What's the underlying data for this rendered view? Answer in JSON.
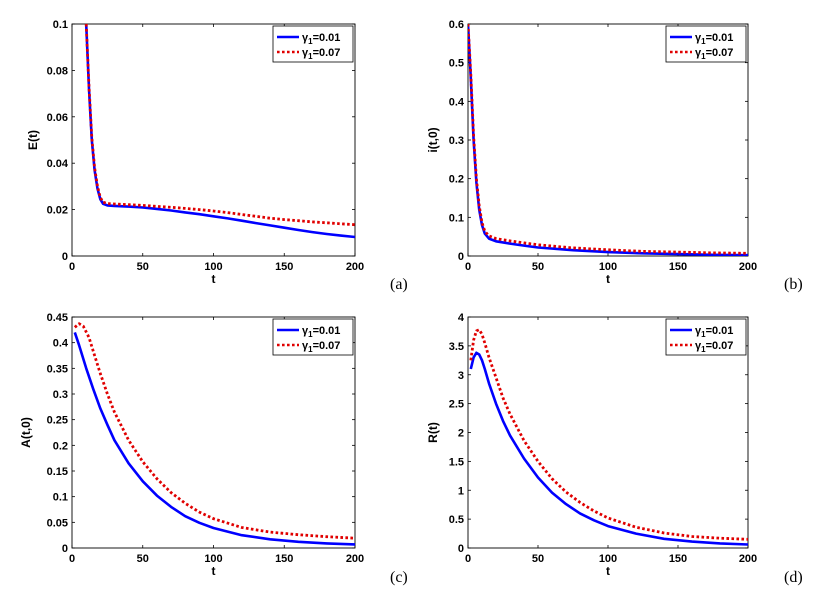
{
  "chart_data": [
    {
      "type": "line",
      "panel_tag": "(a)",
      "xlabel": "t",
      "ylabel": "E(t)",
      "xlim": [
        0,
        200
      ],
      "ylim": [
        0,
        0.1
      ],
      "xticks": [
        "0",
        "50",
        "100",
        "150",
        "200"
      ],
      "yticks": [
        "0",
        "0.02",
        "0.04",
        "0.06",
        "0.08",
        "0.1"
      ],
      "legend": {
        "position": "top-right"
      },
      "series": [
        {
          "name": "γ1=0.01",
          "legend_base": "γ",
          "legend_sub": "1",
          "legend_rest": "=0.01",
          "color": "#0000ff",
          "style": "solid",
          "x": [
            10,
            12,
            14,
            16,
            18,
            20,
            22,
            25,
            30,
            40,
            50,
            60,
            70,
            80,
            90,
            100,
            110,
            120,
            130,
            140,
            150,
            160,
            170,
            180,
            190,
            200
          ],
          "y": [
            0.1,
            0.072,
            0.05,
            0.037,
            0.029,
            0.0245,
            0.0225,
            0.0218,
            0.0216,
            0.0213,
            0.0209,
            0.0203,
            0.0196,
            0.0188,
            0.018,
            0.0171,
            0.0162,
            0.0152,
            0.0142,
            0.0132,
            0.0122,
            0.0112,
            0.0103,
            0.0095,
            0.0088,
            0.0082
          ]
        },
        {
          "name": "γ1=0.07",
          "legend_base": "γ",
          "legend_sub": "1",
          "legend_rest": "=0.07",
          "color": "#e00000",
          "style": "dotted",
          "x": [
            10,
            12,
            14,
            16,
            18,
            20,
            22,
            25,
            30,
            40,
            50,
            60,
            70,
            80,
            90,
            100,
            110,
            120,
            130,
            140,
            150,
            160,
            170,
            180,
            190,
            200
          ],
          "y": [
            0.1,
            0.073,
            0.051,
            0.038,
            0.03,
            0.0252,
            0.0232,
            0.0226,
            0.0224,
            0.0221,
            0.0218,
            0.0214,
            0.021,
            0.0205,
            0.02,
            0.0194,
            0.0187,
            0.0179,
            0.0171,
            0.0163,
            0.0157,
            0.0152,
            0.0147,
            0.0143,
            0.0139,
            0.0135
          ]
        }
      ]
    },
    {
      "type": "line",
      "panel_tag": "(b)",
      "xlabel": "t",
      "ylabel": "i(t,0)",
      "xlim": [
        0,
        200
      ],
      "ylim": [
        0,
        0.6
      ],
      "xticks": [
        "0",
        "50",
        "100",
        "150",
        "200"
      ],
      "yticks": [
        "0",
        "0.1",
        "0.2",
        "0.3",
        "0.4",
        "0.5",
        "0.6"
      ],
      "legend": {
        "position": "top-right"
      },
      "series": [
        {
          "name": "γ1=0.01",
          "legend_base": "γ",
          "legend_sub": "1",
          "legend_rest": "=0.01",
          "color": "#0000ff",
          "style": "solid",
          "x": [
            0,
            2,
            4,
            6,
            8,
            10,
            12,
            15,
            20,
            30,
            40,
            50,
            75,
            100,
            125,
            150,
            175,
            200
          ],
          "y": [
            0.6,
            0.46,
            0.3,
            0.19,
            0.12,
            0.08,
            0.058,
            0.045,
            0.038,
            0.032,
            0.027,
            0.022,
            0.015,
            0.01,
            0.007,
            0.005,
            0.003,
            0.002
          ]
        },
        {
          "name": "γ1=0.07",
          "legend_base": "γ",
          "legend_sub": "1",
          "legend_rest": "=0.07",
          "color": "#e00000",
          "style": "dotted",
          "x": [
            0,
            2,
            4,
            6,
            8,
            10,
            12,
            15,
            20,
            30,
            40,
            50,
            75,
            100,
            125,
            150,
            175,
            200
          ],
          "y": [
            0.6,
            0.47,
            0.31,
            0.2,
            0.13,
            0.086,
            0.064,
            0.052,
            0.045,
            0.039,
            0.034,
            0.029,
            0.021,
            0.016,
            0.012,
            0.01,
            0.008,
            0.007
          ]
        }
      ]
    },
    {
      "type": "line",
      "panel_tag": "(c)",
      "xlabel": "t",
      "ylabel": "A(t,0)",
      "xlim": [
        0,
        200
      ],
      "ylim": [
        0,
        0.45
      ],
      "xticks": [
        "0",
        "50",
        "100",
        "150",
        "200"
      ],
      "yticks": [
        "0",
        "0.05",
        "0.1",
        "0.15",
        "0.2",
        "0.25",
        "0.3",
        "0.35",
        "0.4",
        "0.45"
      ],
      "legend": {
        "position": "top-right"
      },
      "series": [
        {
          "name": "γ1=0.01",
          "legend_base": "γ",
          "legend_sub": "1",
          "legend_rest": "=0.01",
          "color": "#0000ff",
          "style": "solid",
          "x": [
            2,
            5,
            10,
            15,
            20,
            25,
            30,
            40,
            50,
            60,
            70,
            80,
            90,
            100,
            120,
            140,
            160,
            180,
            200
          ],
          "y": [
            0.42,
            0.395,
            0.35,
            0.31,
            0.272,
            0.24,
            0.21,
            0.165,
            0.13,
            0.102,
            0.08,
            0.062,
            0.049,
            0.039,
            0.025,
            0.017,
            0.012,
            0.009,
            0.007
          ]
        },
        {
          "name": "γ1=0.07",
          "legend_base": "γ",
          "legend_sub": "1",
          "legend_rest": "=0.07",
          "color": "#e00000",
          "style": "dotted",
          "x": [
            2,
            5,
            8,
            12,
            16,
            20,
            25,
            30,
            40,
            50,
            60,
            70,
            80,
            90,
            100,
            120,
            140,
            160,
            180,
            200
          ],
          "y": [
            0.43,
            0.437,
            0.432,
            0.41,
            0.375,
            0.34,
            0.3,
            0.265,
            0.21,
            0.168,
            0.135,
            0.108,
            0.087,
            0.07,
            0.057,
            0.04,
            0.031,
            0.026,
            0.022,
            0.019
          ]
        }
      ]
    },
    {
      "type": "line",
      "panel_tag": "(d)",
      "xlabel": "t",
      "ylabel": "R(t)",
      "xlim": [
        0,
        200
      ],
      "ylim": [
        0,
        4
      ],
      "xticks": [
        "0",
        "50",
        "100",
        "150",
        "200"
      ],
      "yticks": [
        "0",
        "0.5",
        "1",
        "1.5",
        "2",
        "2.5",
        "3",
        "3.5",
        "4"
      ],
      "legend": {
        "position": "top-right"
      },
      "series": [
        {
          "name": "γ1=0.01",
          "legend_base": "γ",
          "legend_sub": "1",
          "legend_rest": "=0.01",
          "color": "#0000ff",
          "style": "solid",
          "x": [
            2,
            4,
            6,
            8,
            10,
            12,
            15,
            20,
            25,
            30,
            40,
            50,
            60,
            70,
            80,
            90,
            100,
            120,
            140,
            160,
            180,
            200
          ],
          "y": [
            3.1,
            3.3,
            3.38,
            3.35,
            3.25,
            3.1,
            2.85,
            2.5,
            2.2,
            1.95,
            1.55,
            1.22,
            0.96,
            0.76,
            0.6,
            0.48,
            0.38,
            0.25,
            0.16,
            0.11,
            0.08,
            0.06
          ]
        },
        {
          "name": "γ1=0.07",
          "legend_base": "γ",
          "legend_sub": "1",
          "legend_rest": "=0.07",
          "color": "#e00000",
          "style": "dotted",
          "x": [
            2,
            4,
            6,
            8,
            10,
            12,
            15,
            20,
            25,
            30,
            40,
            50,
            60,
            70,
            80,
            90,
            100,
            120,
            140,
            160,
            180,
            200
          ],
          "y": [
            3.25,
            3.6,
            3.76,
            3.78,
            3.7,
            3.55,
            3.3,
            2.95,
            2.6,
            2.32,
            1.86,
            1.5,
            1.2,
            0.97,
            0.79,
            0.64,
            0.52,
            0.36,
            0.26,
            0.2,
            0.17,
            0.15
          ]
        }
      ]
    }
  ]
}
